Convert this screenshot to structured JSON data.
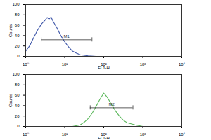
{
  "chart_data": [
    {
      "type": "line",
      "color": "#3d55a8",
      "log": "x",
      "x": [
        1,
        1.26,
        1.58,
        2.0,
        2.51,
        3.16,
        3.55,
        3.98,
        4.47,
        5.01,
        6.31,
        7.94,
        10,
        12.6,
        15.8,
        20,
        25.1,
        31.6,
        39.8,
        63.1,
        100
      ],
      "values": [
        10,
        20,
        35,
        50,
        62,
        70,
        75,
        72,
        76,
        68,
        55,
        40,
        28,
        18,
        10,
        6,
        3,
        2,
        1,
        0,
        0
      ],
      "xlim": [
        1,
        10000
      ],
      "xticks": [
        {
          "value": 1,
          "label": "10⁰"
        },
        {
          "value": 10,
          "label": "10¹"
        },
        {
          "value": 100,
          "label": "10²"
        },
        {
          "value": 1000,
          "label": "10³"
        },
        {
          "value": 10000,
          "label": "10⁴"
        }
      ],
      "ylim": [
        0,
        100
      ],
      "yticks": [
        0,
        20,
        40,
        60,
        80,
        100
      ],
      "x_label": "FL1-H",
      "y_label": "Counts",
      "annotations": [
        {
          "text": "M1",
          "x": [
            2.5,
            50
          ],
          "y": 32
        }
      ]
    },
    {
      "type": "line",
      "color": "#5cb85c",
      "log": "x",
      "x": [
        15.8,
        25.1,
        31.6,
        39.8,
        50.1,
        63.1,
        79.4,
        89.1,
        100,
        112,
        126,
        158,
        200,
        251,
        316,
        398,
        631,
        1000
      ],
      "values": [
        0,
        3,
        8,
        15,
        25,
        38,
        52,
        58,
        64,
        60,
        55,
        42,
        30,
        20,
        12,
        7,
        3,
        0
      ],
      "xlim": [
        1,
        10000
      ],
      "xticks": [
        {
          "value": 1,
          "label": "10⁰"
        },
        {
          "value": 10,
          "label": "10¹"
        },
        {
          "value": 100,
          "label": "10²"
        },
        {
          "value": 1000,
          "label": "10³"
        },
        {
          "value": 10000,
          "label": "10⁴"
        }
      ],
      "ylim": [
        0,
        100
      ],
      "yticks": [
        0,
        20,
        40,
        60,
        80,
        100
      ],
      "x_label": "FL1-H",
      "y_label": "Counts",
      "annotations": [
        {
          "text": "M2",
          "x": [
            45,
            560
          ],
          "y": 36
        }
      ]
    }
  ]
}
